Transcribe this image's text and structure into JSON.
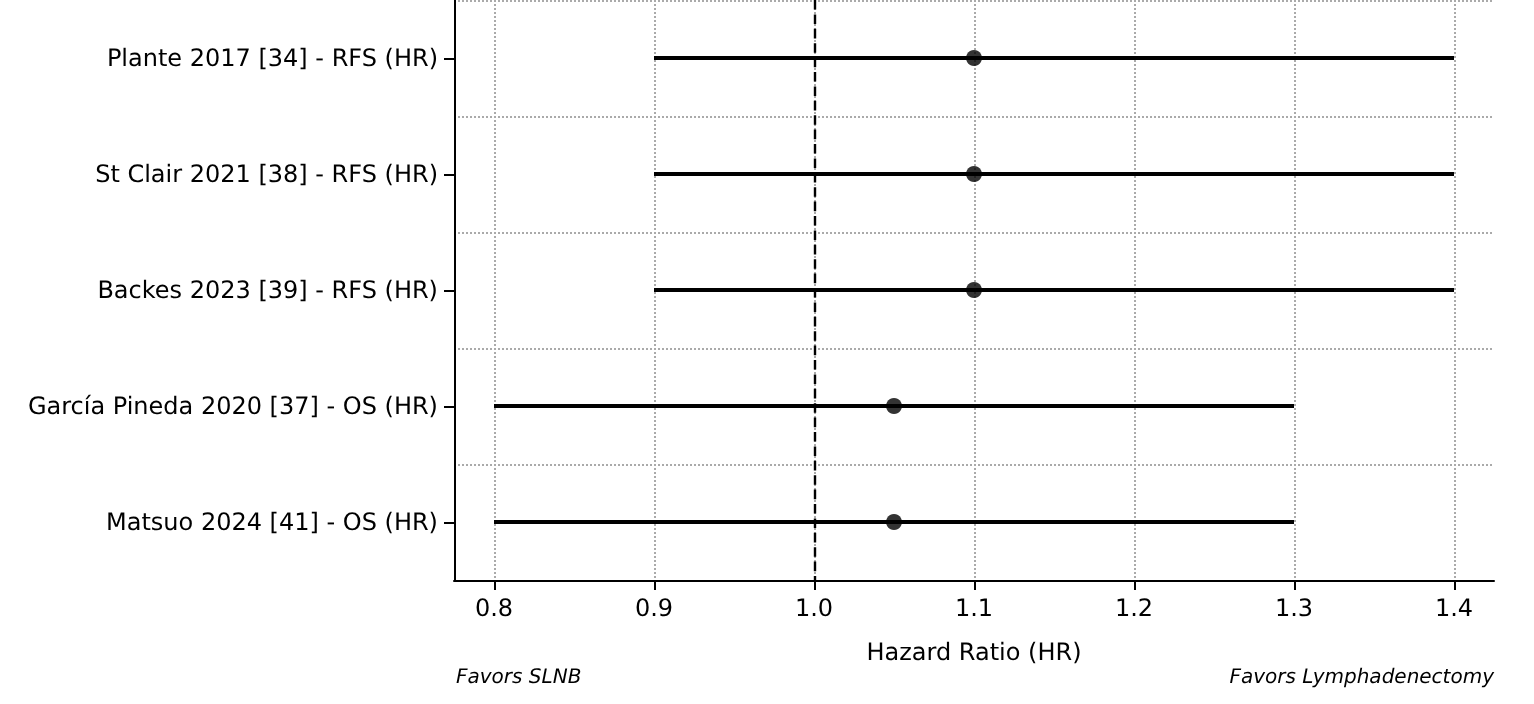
{
  "chart_data": {
    "type": "scatter",
    "orientation": "horizontal",
    "xlabel": "Hazard Ratio (HR)",
    "categories": [
      "Plante 2017 [34] - RFS (HR)",
      "St Clair 2021 [38] - RFS (HR)",
      "Backes 2023 [39] - RFS (HR)",
      "García Pineda 2020 [37] - OS (HR)",
      "Matsuo 2024 [41] - OS (HR)"
    ],
    "series": [
      {
        "color": "#000000",
        "values": [
          1.1,
          1.1,
          1.1,
          1.05,
          1.05
        ],
        "errors": [
          [
            0.9,
            1.4
          ],
          [
            0.9,
            1.4
          ],
          [
            0.9,
            1.4
          ],
          [
            0.8,
            1.3
          ],
          [
            0.8,
            1.3
          ]
        ]
      }
    ],
    "xlim": [
      0.775,
      1.425
    ],
    "xticks": [
      0.8,
      0.9,
      {
        "value": 1.0,
        "label": "1.0"
      },
      1.1,
      1.2,
      1.3,
      1.4
    ],
    "ref_lines": [
      {
        "axis": "x",
        "value": 1.0,
        "color": "#000000",
        "line_style": "dashed"
      }
    ],
    "annotations": [
      "Favors SLNB",
      "Favors Lymphadenectomy"
    ],
    "grid": true,
    "marker": "circle"
  }
}
